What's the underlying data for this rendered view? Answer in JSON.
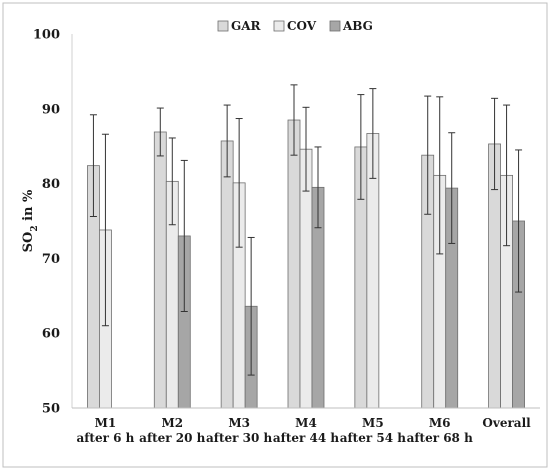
{
  "chart_data": {
    "type": "bar",
    "categories": [
      [
        "M1",
        "after 6 h"
      ],
      [
        "M2",
        "after 20 h"
      ],
      [
        "M3",
        "after 30 h"
      ],
      [
        "M4",
        "after 44 h"
      ],
      [
        "M5",
        "after 54 h"
      ],
      [
        "M6",
        "after 68 h"
      ],
      [
        "Overall"
      ]
    ],
    "series": [
      {
        "name": "GAR",
        "color": "#d9d9d9",
        "values": [
          82.4,
          86.9,
          85.7,
          88.5,
          84.9,
          83.8,
          85.3
        ],
        "error": [
          6.8,
          3.2,
          4.8,
          4.7,
          7.0,
          7.9,
          6.1
        ]
      },
      {
        "name": "COV",
        "color": "#ebebeb",
        "values": [
          73.8,
          80.3,
          80.1,
          84.6,
          86.7,
          81.1,
          81.1
        ],
        "error": [
          12.8,
          5.8,
          8.6,
          5.6,
          6.0,
          10.5,
          9.4
        ]
      },
      {
        "name": "ABG",
        "color": "#a6a6a6",
        "values": [
          null,
          73.0,
          63.6,
          79.5,
          null,
          79.4,
          75.0
        ],
        "error": [
          null,
          10.1,
          9.2,
          5.4,
          null,
          7.4,
          9.5
        ]
      }
    ],
    "ylim": [
      50,
      100
    ],
    "yticks": [
      50,
      60,
      70,
      80,
      90,
      100
    ],
    "ylabel_main": "SO",
    "ylabel_sub": "2",
    "ylabel_rest": " in %",
    "xlabel": "",
    "title": "",
    "grid": false,
    "legend_position": "top-center",
    "error_bars": true
  }
}
